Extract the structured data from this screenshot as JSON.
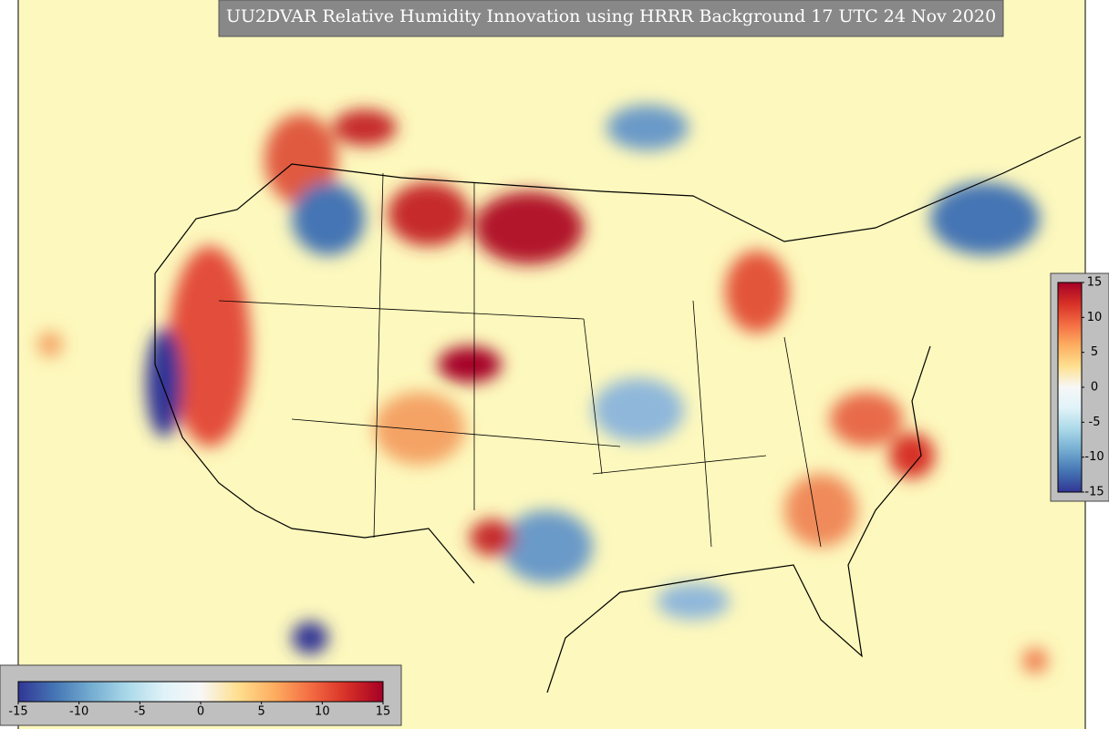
{
  "title": "UU2DVAR Relative Humidity Innovation using HRRR Background 17 UTC 24 Nov 2020",
  "colormap": [
    "#313695",
    "#4575b4",
    "#74add1",
    "#abd9e9",
    "#e0f3f8",
    "#f7f7f7",
    "#fee090",
    "#fdae61",
    "#f46d43",
    "#d73027",
    "#a50026"
  ],
  "colorbars": [
    {
      "orientation": "horizontal",
      "lim": [
        -15,
        15
      ],
      "ticks": [
        -15,
        -10,
        -5,
        0,
        5,
        10,
        15
      ]
    },
    {
      "orientation": "vertical",
      "lim": [
        -15,
        15
      ],
      "ticks": [
        15,
        10,
        5,
        0,
        -5,
        -10,
        -15
      ]
    }
  ]
}
